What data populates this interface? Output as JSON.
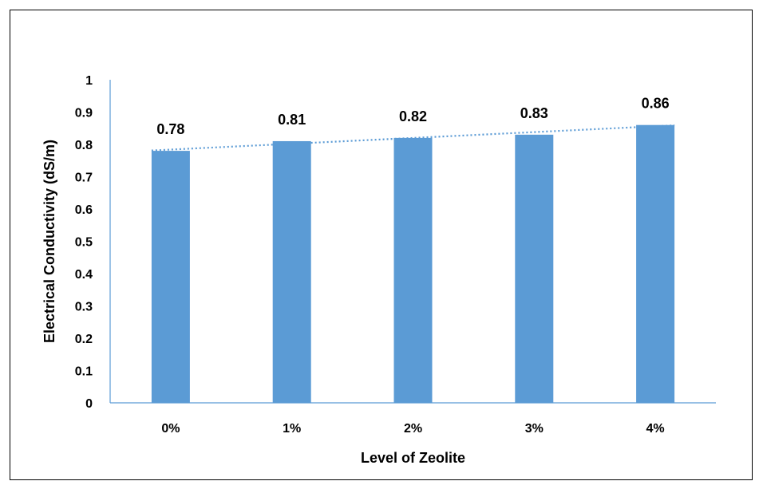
{
  "chart_data": {
    "type": "bar",
    "categories": [
      "0%",
      "1%",
      "2%",
      "3%",
      "4%"
    ],
    "values": [
      0.78,
      0.81,
      0.82,
      0.83,
      0.86
    ],
    "data_labels": [
      "0.78",
      "0.81",
      "0.82",
      "0.83",
      "0.86"
    ],
    "y_ticks": [
      "0",
      "0.1",
      "0.2",
      "0.3",
      "0.4",
      "0.5",
      "0.6",
      "0.7",
      "0.8",
      "0.9",
      "1"
    ],
    "xlabel": "Level of Zeolite",
    "ylabel": "Electrical Conductivity (dS/m)",
    "ylim": [
      0,
      1
    ],
    "trendline": "linear, dotted",
    "grid": false,
    "bar_color": "#5b9bd5",
    "trend_color": "#5b9bd5",
    "axis_color": "#5b9bd5"
  }
}
